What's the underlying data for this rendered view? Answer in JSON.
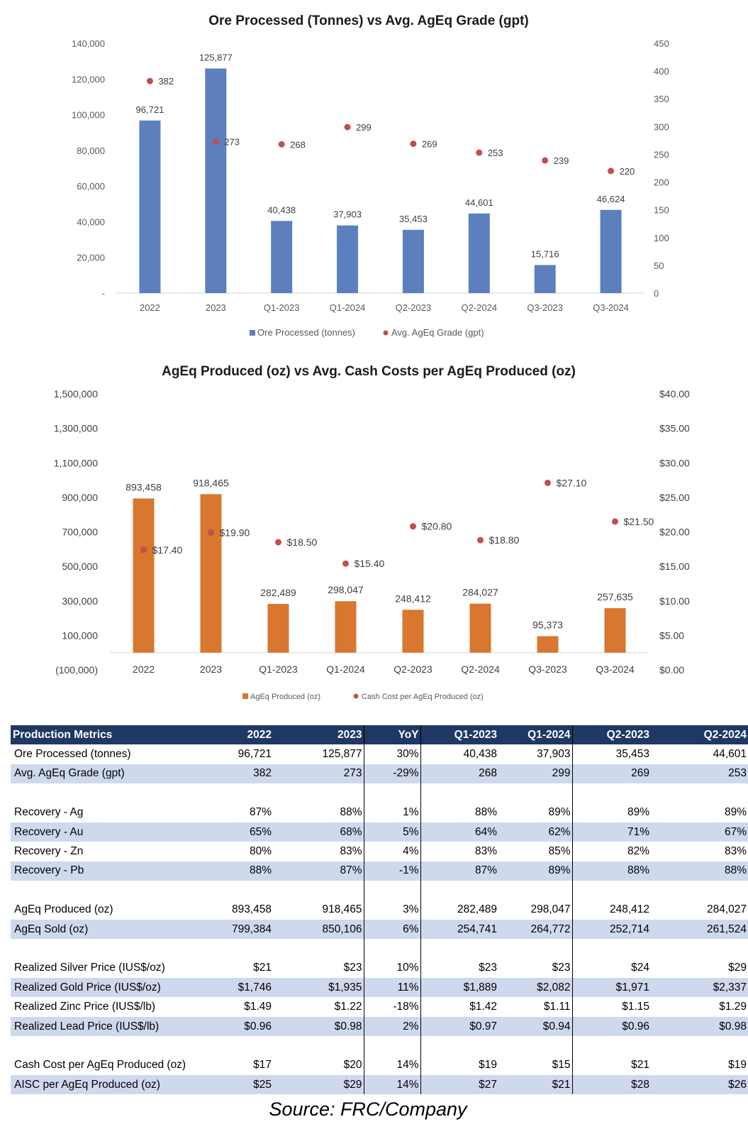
{
  "chart_data": [
    {
      "type": "bar",
      "title": "Ore Processed (Tonnes) vs Avg. AgEq Grade (gpt)",
      "categories": [
        "2022",
        "2023",
        "Q1-2023",
        "Q1-2024",
        "Q2-2023",
        "Q2-2024",
        "Q3-2023",
        "Q3-2024"
      ],
      "series": [
        {
          "name": "Ore Processed (tonnes)",
          "type": "bar",
          "axis": "left",
          "color": "#5b80bd",
          "values": [
            96721,
            125877,
            40438,
            37903,
            35453,
            44601,
            15716,
            46624
          ],
          "labels": [
            "96,721",
            "125,877",
            "40,438",
            "37,903",
            "35,453",
            "44,601",
            "15,716",
            "46,624"
          ]
        },
        {
          "name": "Avg. AgEq Grade (gpt)",
          "type": "scatter",
          "axis": "right",
          "color": "#c0504d",
          "values": [
            382,
            273,
            268,
            299,
            269,
            253,
            239,
            220
          ],
          "labels": [
            "382",
            "273",
            "268",
            "299",
            "269",
            "253",
            "239",
            "220"
          ]
        }
      ],
      "y_left": {
        "min": 0,
        "max": 140000,
        "ticks": [
          0,
          20000,
          40000,
          60000,
          80000,
          100000,
          120000,
          140000
        ],
        "tick_labels": [
          "-",
          "20,000",
          "40,000",
          "60,000",
          "80,000",
          "100,000",
          "120,000",
          "140,000"
        ]
      },
      "y_right": {
        "min": 0,
        "max": 450,
        "ticks": [
          0,
          50,
          100,
          150,
          200,
          250,
          300,
          350,
          400,
          450
        ],
        "tick_labels": [
          "0",
          "50",
          "100",
          "150",
          "200",
          "250",
          "300",
          "350",
          "400",
          "450"
        ]
      },
      "legend": "bottom"
    },
    {
      "type": "bar",
      "title": "AgEq Produced (oz) vs Avg. Cash Costs per AgEq Produced (oz)",
      "categories": [
        "2022",
        "2023",
        "Q1-2023",
        "Q1-2024",
        "Q2-2023",
        "Q2-2024",
        "Q3-2023",
        "Q3-2024"
      ],
      "series": [
        {
          "name": "AgEq Produced (oz)",
          "type": "bar",
          "axis": "left",
          "color": "#d9762f",
          "values": [
            893458,
            918465,
            282489,
            298047,
            248412,
            284027,
            95373,
            257635
          ],
          "labels": [
            "893,458",
            "918,465",
            "282,489",
            "298,047",
            "248,412",
            "284,027",
            "95,373",
            "257,635"
          ]
        },
        {
          "name": "Cash Cost per AgEq Produced (oz)",
          "type": "scatter",
          "axis": "right",
          "color": "#c0504d",
          "values": [
            17.4,
            19.9,
            18.5,
            15.4,
            20.8,
            18.8,
            27.1,
            21.5
          ],
          "labels": [
            "$17.40",
            "$19.90",
            "$18.50",
            "$15.40",
            "$20.80",
            "$18.80",
            "$27.10",
            "$21.50"
          ]
        }
      ],
      "y_left": {
        "min": -100000,
        "max": 1500000,
        "ticks": [
          -100000,
          100000,
          300000,
          500000,
          700000,
          900000,
          1100000,
          1300000,
          1500000
        ],
        "tick_labels": [
          "(100,000)",
          "100,000",
          "300,000",
          "500,000",
          "700,000",
          "900,000",
          "1,100,000",
          "1,300,000",
          "1,500,000"
        ]
      },
      "y_right": {
        "min": 0,
        "max": 40,
        "ticks": [
          0,
          5,
          10,
          15,
          20,
          25,
          30,
          35,
          40
        ],
        "tick_labels": [
          "$0.00",
          "$5.00",
          "$10.00",
          "$15.00",
          "$20.00",
          "$25.00",
          "$30.00",
          "$35.00",
          "$40.00"
        ]
      },
      "legend": "bottom"
    }
  ],
  "table": {
    "headers": [
      "Production Metrics",
      "2022",
      "2023",
      "YoY",
      "Q1-2023",
      "Q1-2024",
      "Q2-2023",
      "Q2-2024"
    ],
    "rows": [
      {
        "cells": [
          "Ore Processed (tonnes)",
          "96,721",
          "125,877",
          "30%",
          "40,438",
          "37,903",
          "35,453",
          "44,601"
        ],
        "shade": false
      },
      {
        "cells": [
          "Avg. AgEq Grade (gpt)",
          "382",
          "273",
          "-29%",
          "268",
          "299",
          "269",
          "253"
        ],
        "shade": true
      },
      {
        "blank": true
      },
      {
        "cells": [
          "Recovery - Ag",
          "87%",
          "88%",
          "1%",
          "88%",
          "89%",
          "89%",
          "89%"
        ],
        "shade": false
      },
      {
        "cells": [
          "Recovery - Au",
          "65%",
          "68%",
          "5%",
          "64%",
          "62%",
          "71%",
          "67%"
        ],
        "shade": true
      },
      {
        "cells": [
          "Recovery - Zn",
          "80%",
          "83%",
          "4%",
          "83%",
          "85%",
          "82%",
          "83%"
        ],
        "shade": false
      },
      {
        "cells": [
          "Recovery - Pb",
          "88%",
          "87%",
          "-1%",
          "87%",
          "89%",
          "88%",
          "88%"
        ],
        "shade": true
      },
      {
        "blank": true
      },
      {
        "cells": [
          "AgEq Produced (oz)",
          "893,458",
          "918,465",
          "3%",
          "282,489",
          "298,047",
          "248,412",
          "284,027"
        ],
        "shade": false
      },
      {
        "cells": [
          "AgEq Sold (oz)",
          "799,384",
          "850,106",
          "6%",
          "254,741",
          "264,772",
          "252,714",
          "261,524"
        ],
        "shade": true
      },
      {
        "blank": true
      },
      {
        "cells": [
          "Realized Silver Price (IUS$/oz)",
          "$21",
          "$23",
          "10%",
          "$23",
          "$23",
          "$24",
          "$29"
        ],
        "shade": false
      },
      {
        "cells": [
          "Realized Gold Price (IUS$/oz)",
          "$1,746",
          "$1,935",
          "11%",
          "$1,889",
          "$2,082",
          "$1,971",
          "$2,337"
        ],
        "shade": true
      },
      {
        "cells": [
          "Realized Zinc Price (IUS$/lb)",
          "$1.49",
          "$1.22",
          "-18%",
          "$1.42",
          "$1.11",
          "$1.15",
          "$1.29"
        ],
        "shade": false
      },
      {
        "cells": [
          "Realized Lead Price (IUS$/lb)",
          "$0.96",
          "$0.98",
          "2%",
          "$0.97",
          "$0.94",
          "$0.96",
          "$0.98"
        ],
        "shade": true
      },
      {
        "blank": true
      },
      {
        "cells": [
          "Cash Cost per AgEq Produced (oz)",
          "$17",
          "$20",
          "14%",
          "$19",
          "$15",
          "$21",
          "$19"
        ],
        "shade": false
      },
      {
        "cells": [
          "AISC per AgEq Produced (oz)",
          "$25",
          "$29",
          "14%",
          "$27",
          "$21",
          "$28",
          "$26"
        ],
        "shade": true
      }
    ]
  },
  "source": "Source: FRC/Company"
}
